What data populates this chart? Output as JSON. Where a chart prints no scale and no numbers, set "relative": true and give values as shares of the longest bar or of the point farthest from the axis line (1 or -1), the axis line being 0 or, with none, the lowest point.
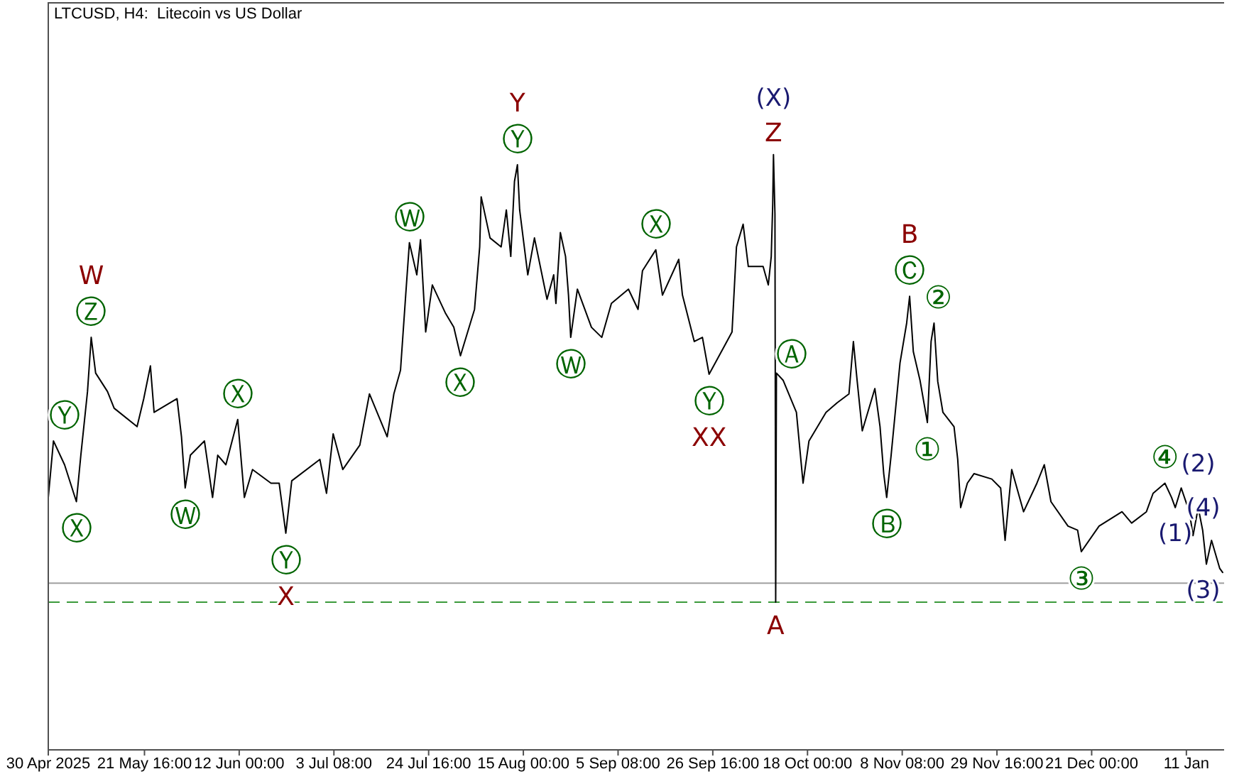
{
  "chart_data": {
    "type": "line",
    "title": "LTCUSD, H4:  Litecoin vs US Dollar",
    "relative": true,
    "x": [
      "2025-04-30T00:00",
      "2025-05-01T04:00",
      "2025-05-03T16:00",
      "2025-05-06T08:00",
      "2025-05-07T08:00",
      "2025-05-08T20:00",
      "2025-05-09T16:00",
      "2025-05-10T16:00",
      "2025-05-13T08:00",
      "2025-05-14T20:00",
      "2025-05-20T00:00",
      "2025-05-21T12:00",
      "2025-05-23T00:00",
      "2025-05-23T20:00",
      "2025-05-29T00:00",
      "2025-05-30T00:00",
      "2025-05-30T20:00",
      "2025-06-01T00:00",
      "2025-06-04T04:00",
      "2025-06-06T00:00",
      "2025-06-07T04:00",
      "2025-06-09T00:00",
      "2025-06-11T16:00",
      "2025-06-13T04:00",
      "2025-06-15T00:00",
      "2025-06-19T04:00",
      "2025-06-21T00:00",
      "2025-06-22T12:00",
      "2025-06-23T20:00",
      "2025-06-30T04:00",
      "2025-07-01T16:00",
      "2025-07-03T04:00",
      "2025-07-05T08:00",
      "2025-07-09T04:00",
      "2025-07-11T08:00",
      "2025-07-15T08:00",
      "2025-07-16T20:00",
      "2025-07-18T08:00",
      "2025-07-19T12:00",
      "2025-07-20T08:00",
      "2025-07-22T00:00",
      "2025-07-22T20:00",
      "2025-07-24T00:00",
      "2025-07-25T12:00",
      "2025-07-28T12:00",
      "2025-07-30T08:00",
      "2025-07-31T20:00",
      "2025-08-04T00:00",
      "2025-08-05T04:00",
      "2025-08-05T12:00",
      "2025-08-07T12:00",
      "2025-08-10T00:00",
      "2025-08-11T04:00",
      "2025-08-12T04:00",
      "2025-08-13T00:00",
      "2025-08-13T16:00",
      "2025-08-14T04:00",
      "2025-08-16T00:00",
      "2025-08-17T12:00",
      "2025-08-20T08:00",
      "2025-08-21T20:00",
      "2025-08-22T08:00",
      "2025-08-23T08:00",
      "2025-08-24T12:00",
      "2025-08-25T04:00",
      "2025-08-25T16:00",
      "2025-08-27T04:00",
      "2025-08-30T08:00",
      "2025-09-01T16:00",
      "2025-09-03T20:00",
      "2025-09-07T16:00",
      "2025-09-09T20:00",
      "2025-09-10T20:00",
      "2025-09-13T20:00",
      "2025-09-15T08:00",
      "2025-09-19T00:00",
      "2025-09-19T20:00",
      "2025-09-22T12:00",
      "2025-09-24T08:00",
      "2025-09-25T20:00",
      "2025-10-01T00:00",
      "2025-10-02T00:00",
      "2025-10-03T12:00",
      "2025-10-04T16:00",
      "2025-10-08T00:00",
      "2025-10-09T04:00",
      "2025-10-09T20:00",
      "2025-10-10T04:00",
      "2025-10-10T08:00",
      "2025-10-10T16:00",
      "2025-10-10T20:00",
      "2025-10-11T00:00",
      "2025-10-12T12:00",
      "2025-10-15T12:00",
      "2025-10-17T00:00",
      "2025-10-18T08:00",
      "2025-10-22T04:00",
      "2025-10-24T16:00",
      "2025-10-27T08:00",
      "2025-10-28T08:00",
      "2025-10-29T04:00",
      "2025-10-30T08:00",
      "2025-11-02T04:00",
      "2025-11-03T08:00",
      "2025-11-04T04:00",
      "2025-11-04T20:00",
      "2025-11-05T20:00",
      "2025-11-07T20:00",
      "2025-11-09T08:00",
      "2025-11-10T00:00",
      "2025-11-10T20:00",
      "2025-11-12T08:00",
      "2025-11-14T00:00",
      "2025-11-14T20:00",
      "2025-11-15T12:00",
      "2025-11-16T08:00",
      "2025-11-17T12:00",
      "2025-11-20T00:00",
      "2025-11-20T20:00",
      "2025-11-21T12:00",
      "2025-11-23T00:00",
      "2025-11-24T12:00",
      "2025-11-28T12:00",
      "2025-11-30T12:00",
      "2025-12-01T12:00",
      "2025-12-03T00:00",
      "2025-12-05T16:00",
      "2025-12-08T16:00",
      "2025-12-10T08:00",
      "2025-12-11T20:00",
      "2025-12-15T16:00",
      "2025-12-17T20:00",
      "2025-12-18T16:00",
      "2025-12-22T16:00",
      "2025-12-27T20:00",
      "2025-12-30T00:00",
      "2026-01-02T08:00",
      "2026-01-03T20:00",
      "2026-01-06T12:00",
      "2026-01-08T00:00",
      "2026-01-08T20:00",
      "2026-01-10T04:00",
      "2026-01-12T00:00",
      "2026-01-12T20:00",
      "2026-01-14T00:00",
      "2026-01-15T00:00",
      "2026-01-15T20:00",
      "2026-01-17T00:00",
      "2026-01-18T20:00",
      "2026-01-19T12:00"
    ],
    "series": [
      {
        "color": "#000000",
        "values": [
          0.424,
          0.519,
          0.479,
          0.417,
          0.495,
          0.602,
          0.693,
          0.633,
          0.602,
          0.574,
          0.543,
          0.59,
          0.645,
          0.567,
          0.59,
          0.526,
          0.44,
          0.495,
          0.519,
          0.424,
          0.495,
          0.479,
          0.555,
          0.424,
          0.471,
          0.448,
          0.448,
          0.364,
          0.452,
          0.488,
          0.431,
          0.531,
          0.471,
          0.512,
          0.598,
          0.526,
          0.598,
          0.638,
          0.764,
          0.852,
          0.798,
          0.857,
          0.702,
          0.781,
          0.733,
          0.71,
          0.662,
          0.74,
          0.845,
          0.929,
          0.86,
          0.845,
          0.907,
          0.829,
          0.955,
          0.983,
          0.907,
          0.798,
          0.86,
          0.757,
          0.798,
          0.75,
          0.869,
          0.829,
          0.764,
          0.693,
          0.774,
          0.71,
          0.693,
          0.75,
          0.774,
          0.74,
          0.805,
          0.84,
          0.764,
          0.824,
          0.764,
          0.686,
          0.693,
          0.631,
          0.702,
          0.845,
          0.883,
          0.812,
          0.812,
          0.781,
          0.829,
          0.917,
          1,
          0.9,
          0.248,
          0.633,
          0.621,
          0.567,
          0.448,
          0.519,
          0.567,
          0.583,
          0.598,
          0.686,
          0.621,
          0.536,
          0.607,
          0.543,
          0.464,
          0.424,
          0.495,
          0.65,
          0.717,
          0.762,
          0.669,
          0.621,
          0.55,
          0.686,
          0.717,
          0.619,
          0.567,
          0.543,
          0.488,
          0.407,
          0.448,
          0.464,
          0.455,
          0.44,
          0.352,
          0.471,
          0.4,
          0.448,
          0.479,
          0.417,
          0.376,
          0.369,
          0.333,
          0.376,
          0.4,
          0.381,
          0.4,
          0.431,
          0.448,
          0.424,
          0.407,
          0.44,
          0.4,
          0.36,
          0.407,
          0.369,
          0.312,
          0.352,
          0.305,
          0.298
        ]
      }
    ],
    "xlim": [
      "2025-04-30T00:00",
      "2026-01-19T20:00"
    ],
    "xticks": [
      {
        "value": "2025-04-30T00:00",
        "label": "30 Apr 2025"
      },
      {
        "value": "2025-05-21T16:00",
        "label": "21 May 16:00"
      },
      {
        "value": "2025-06-12T00:00",
        "label": "12 Jun 00:00"
      },
      {
        "value": "2025-07-03T08:00",
        "label": "3 Jul 08:00"
      },
      {
        "value": "2025-07-24T16:00",
        "label": "24 Jul 16:00"
      },
      {
        "value": "2025-08-15T00:00",
        "label": "15 Aug 00:00"
      },
      {
        "value": "2025-09-05T08:00",
        "label": "5 Sep 08:00"
      },
      {
        "value": "2025-09-26T16:00",
        "label": "26 Sep 16:00"
      },
      {
        "value": "2025-10-18T00:00",
        "label": "18 Oct 00:00"
      },
      {
        "value": "2025-11-08T08:00",
        "label": "8 Nov 08:00"
      },
      {
        "value": "2025-11-29T16:00",
        "label": "29 Nov 16:00"
      },
      {
        "value": "2025-12-21T00:00",
        "label": "21 Dec 00:00"
      },
      {
        "value": "2026-01-11T08:00",
        "label": "11 Jan"
      }
    ],
    "ref_lines": [
      {
        "axis": "y",
        "value": 0.28,
        "color": "#a0a0a0",
        "line_style": "solid"
      },
      {
        "axis": "y",
        "value": 0.248,
        "color": "#3c9a3c",
        "line_style": "dashed"
      }
    ],
    "annotations": [
      {
        "text": "Ⓨ",
        "x": "2025-05-01T04:00",
        "y": 0.519
      },
      {
        "text": "Ⓩ",
        "x": "2025-05-09T16:00",
        "y": 0.693
      },
      {
        "text": "Ⓧ",
        "x": "2025-05-06T08:00",
        "y": 0.417
      },
      {
        "text": "Ⓦ",
        "x": "2025-05-30T20:00",
        "y": 0.44
      },
      {
        "text": "Ⓧ",
        "x": "2025-06-11T16:00",
        "y": 0.555
      },
      {
        "text": "Ⓨ",
        "x": "2025-06-22T12:00",
        "y": 0.364
      },
      {
        "text": "Ⓦ",
        "x": "2025-07-20T08:00",
        "y": 0.852
      },
      {
        "text": "Ⓧ",
        "x": "2025-07-31T20:00",
        "y": 0.662
      },
      {
        "text": "Ⓨ",
        "x": "2025-08-13T16:00",
        "y": 0.983
      },
      {
        "text": "Ⓦ",
        "x": "2025-08-25T16:00",
        "y": 0.693
      },
      {
        "text": "Ⓧ",
        "x": "2025-09-13T20:00",
        "y": 0.84
      },
      {
        "text": "Ⓨ",
        "x": "2025-09-25T20:00",
        "y": 0.631
      },
      {
        "text": "Ⓐ",
        "x": "2025-10-12T12:00",
        "y": 0.621
      },
      {
        "text": "Ⓑ",
        "x": "2025-11-04T20:00",
        "y": 0.424
      },
      {
        "text": "Ⓒ",
        "x": "2025-11-10T00:00",
        "y": 0.762
      },
      {
        "text": "②",
        "x": "2025-11-15T12:00",
        "y": 0.717
      },
      {
        "text": "①",
        "x": "2025-11-14T00:00",
        "y": 0.55
      },
      {
        "text": "③",
        "x": "2025-12-18T16:00",
        "y": 0.333
      },
      {
        "text": "④",
        "x": "2026-01-06T12:00",
        "y": 0.448
      },
      {
        "text": "W",
        "x": "2025-05-09T16:00",
        "y": 0.693
      },
      {
        "text": "X",
        "x": "2025-06-22T12:00",
        "y": 0.364
      },
      {
        "text": "Y",
        "x": "2025-08-13T16:00",
        "y": 0.983
      },
      {
        "text": "XX",
        "x": "2025-09-25T20:00",
        "y": 0.631
      },
      {
        "text": "Z",
        "x": "2025-10-10T08:00",
        "y": 1
      },
      {
        "text": "A",
        "x": "2025-10-10T20:00",
        "y": 0.248
      },
      {
        "text": "B",
        "x": "2025-11-10T00:00",
        "y": 0.762
      },
      {
        "text": "(X)",
        "x": "2025-10-10T08:00",
        "y": 1
      },
      {
        "text": "(2)",
        "x": "2026-01-10T04:00",
        "y": 0.44
      },
      {
        "text": "(1)",
        "x": "2026-01-08T20:00",
        "y": 0.407
      },
      {
        "text": "(3)",
        "x": "2026-01-15T20:00",
        "y": 0.312
      },
      {
        "text": "(4)",
        "x": "2026-01-17T00:00",
        "y": 0.352
      }
    ]
  }
}
